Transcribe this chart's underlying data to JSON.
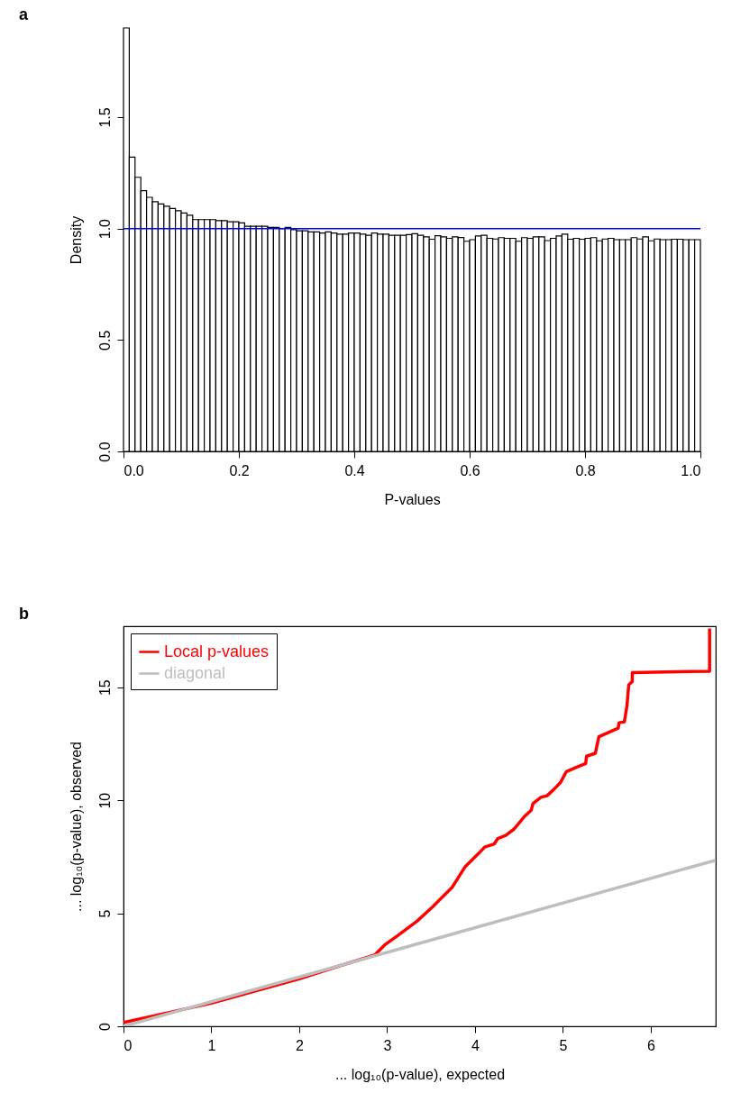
{
  "chart_data": [
    {
      "type": "histogram",
      "title": "a",
      "xlabel": "P-values",
      "ylabel": "Density",
      "bins": [
        0,
        0.01,
        0.02,
        0.03,
        0.04,
        0.05,
        0.06,
        0.07,
        0.08,
        0.09,
        0.1,
        0.11,
        0.12,
        0.13,
        0.14,
        0.15,
        0.16,
        0.17,
        0.18,
        0.19,
        0.2,
        0.21,
        0.22,
        0.23,
        0.24,
        0.25,
        0.26,
        0.27,
        0.28,
        0.29,
        0.3,
        0.31,
        0.32,
        0.33,
        0.34,
        0.35,
        0.36,
        0.37,
        0.38,
        0.39,
        0.4,
        0.41,
        0.42,
        0.43,
        0.44,
        0.45,
        0.46,
        0.47,
        0.48,
        0.49,
        0.5,
        0.51,
        0.52,
        0.53,
        0.54,
        0.55,
        0.56,
        0.57,
        0.58,
        0.59,
        0.6,
        0.61,
        0.62,
        0.63,
        0.64,
        0.65,
        0.66,
        0.67,
        0.68,
        0.69,
        0.7,
        0.71,
        0.72,
        0.73,
        0.74,
        0.75,
        0.76,
        0.77,
        0.78,
        0.79,
        0.8,
        0.81,
        0.82,
        0.83,
        0.84,
        0.85,
        0.86,
        0.87,
        0.88,
        0.89,
        0.9,
        0.91,
        0.92,
        0.93,
        0.94,
        0.95,
        0.96,
        0.97,
        0.98,
        0.99,
        1.0
      ],
      "values": [
        1.9,
        1.32,
        1.23,
        1.17,
        1.14,
        1.12,
        1.11,
        1.1,
        1.09,
        1.08,
        1.07,
        1.06,
        1.04,
        1.04,
        1.04,
        1.04,
        1.035,
        1.035,
        1.03,
        1.03,
        1.025,
        1.01,
        1.01,
        1.01,
        1.01,
        1.005,
        1.005,
        1.0,
        1.005,
        0.995,
        0.99,
        0.99,
        0.985,
        0.985,
        0.98,
        0.985,
        0.98,
        0.975,
        0.975,
        0.98,
        0.98,
        0.975,
        0.97,
        0.98,
        0.975,
        0.975,
        0.97,
        0.97,
        0.97,
        0.973,
        0.977,
        0.97,
        0.963,
        0.952,
        0.968,
        0.963,
        0.956,
        0.963,
        0.96,
        0.943,
        0.95,
        0.967,
        0.97,
        0.956,
        0.953,
        0.959,
        0.956,
        0.956,
        0.943,
        0.959,
        0.956,
        0.963,
        0.963,
        0.946,
        0.956,
        0.967,
        0.975,
        0.952,
        0.956,
        0.952,
        0.956,
        0.959,
        0.945,
        0.953,
        0.956,
        0.95,
        0.95,
        0.95,
        0.959,
        0.953,
        0.963,
        0.945,
        0.953,
        0.95,
        0.95,
        0.952,
        0.952,
        0.95,
        0.95,
        0.95
      ],
      "xlim": [
        0,
        1
      ],
      "ylim": [
        0,
        1.9
      ],
      "xticks": [
        {
          "value": 0,
          "label": "0.0"
        },
        0.2,
        0.4,
        0.6,
        0.8,
        {
          "value": 1,
          "label": "1.0"
        }
      ],
      "yticks": [
        {
          "value": 0,
          "label": "0.0"
        },
        0.5,
        {
          "value": 1,
          "label": "1.0"
        },
        1.5
      ],
      "ref_lines": [
        {
          "axis": "y",
          "value": 1,
          "color": "#0000ff"
        }
      ]
    },
    {
      "type": "line",
      "title": "b",
      "xlabel": "... log₁₀(p-value), expected",
      "ylabel": "... log₁₀(p-value), observed",
      "xlim": [
        0,
        6.74
      ],
      "ylim": [
        0,
        17.7
      ],
      "xticks": [
        0,
        1,
        2,
        3,
        4,
        5,
        6
      ],
      "yticks": [
        0,
        5,
        10,
        15
      ],
      "legend": "top left",
      "series": [
        {
          "name": "Local p-values",
          "color": "#ff0000",
          "x": [
            0,
            1.0,
            2.0,
            2.39,
            2.75,
            2.86,
            2.97,
            3.12,
            3.34,
            3.52,
            3.74,
            3.89,
            4.04,
            4.11,
            4.22,
            4.26,
            4.35,
            4.44,
            4.57,
            4.64,
            4.66,
            4.75,
            4.82,
            4.9,
            4.97,
            5.04,
            5.14,
            5.26,
            5.27,
            5.37,
            5.41,
            5.52,
            5.63,
            5.64,
            5.7,
            5.73,
            5.75,
            5.79,
            5.79,
            6.67,
            6.67
          ],
          "values": [
            0.17,
            1.02,
            2.1,
            2.59,
            3.02,
            3.16,
            3.59,
            4.01,
            4.65,
            5.29,
            6.15,
            7.07,
            7.64,
            7.93,
            8.07,
            8.31,
            8.45,
            8.71,
            9.31,
            9.56,
            9.85,
            10.13,
            10.2,
            10.49,
            10.77,
            11.27,
            11.44,
            11.63,
            11.95,
            12.08,
            12.81,
            13.0,
            13.19,
            13.43,
            13.47,
            14.19,
            15.11,
            15.25,
            15.65,
            15.71,
            17.6
          ]
        },
        {
          "name": "diagonal",
          "color": "#bebebe",
          "x": [
            0,
            6.74
          ],
          "values": [
            0,
            7.35
          ]
        }
      ]
    }
  ]
}
